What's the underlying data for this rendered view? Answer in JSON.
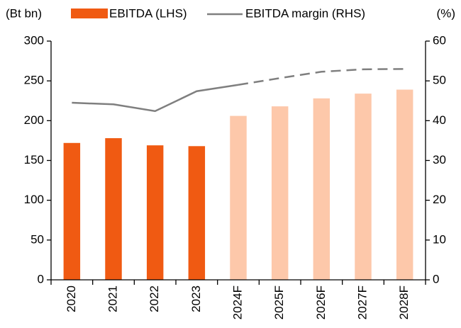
{
  "chart_data": {
    "type": "bar_line",
    "y_label": "(Bt bn)",
    "y2_label": "(%)",
    "categories": [
      "2020",
      "2021",
      "2022",
      "2023",
      "2024F",
      "2025F",
      "2026F",
      "2027F",
      "2028F"
    ],
    "series": [
      {
        "name": "EBITDA (LHS)",
        "type": "bar",
        "color": "#f05a12",
        "colors": [
          "#f05a12",
          "#f05a12",
          "#f05a12",
          "#f05a12",
          "#fdc8aa",
          "#fdc8aa",
          "#fdc8aa",
          "#fdc8aa",
          "#fdc8aa"
        ],
        "values": [
          172,
          178,
          169,
          168,
          206,
          218,
          228,
          234,
          239
        ]
      },
      {
        "name": "EBITDA margin (RHS)",
        "type": "line",
        "axis": "y2",
        "color": "#7f7f7f",
        "styles": [
          "solid",
          "solid",
          "solid",
          "solid",
          "solid",
          "dashed",
          "dashed",
          "dashed",
          "dashed"
        ],
        "values": [
          44.5,
          44.1,
          42.4,
          47.4,
          49.0,
          50.7,
          52.3,
          52.9,
          53.0
        ]
      }
    ],
    "ylim": [
      0,
      300
    ],
    "yticks": [
      0,
      50,
      100,
      150,
      200,
      250,
      300
    ],
    "y2lim": [
      0,
      60
    ],
    "y2ticks": [
      0,
      10,
      20,
      30,
      40,
      50,
      60
    ],
    "legend": "top"
  }
}
